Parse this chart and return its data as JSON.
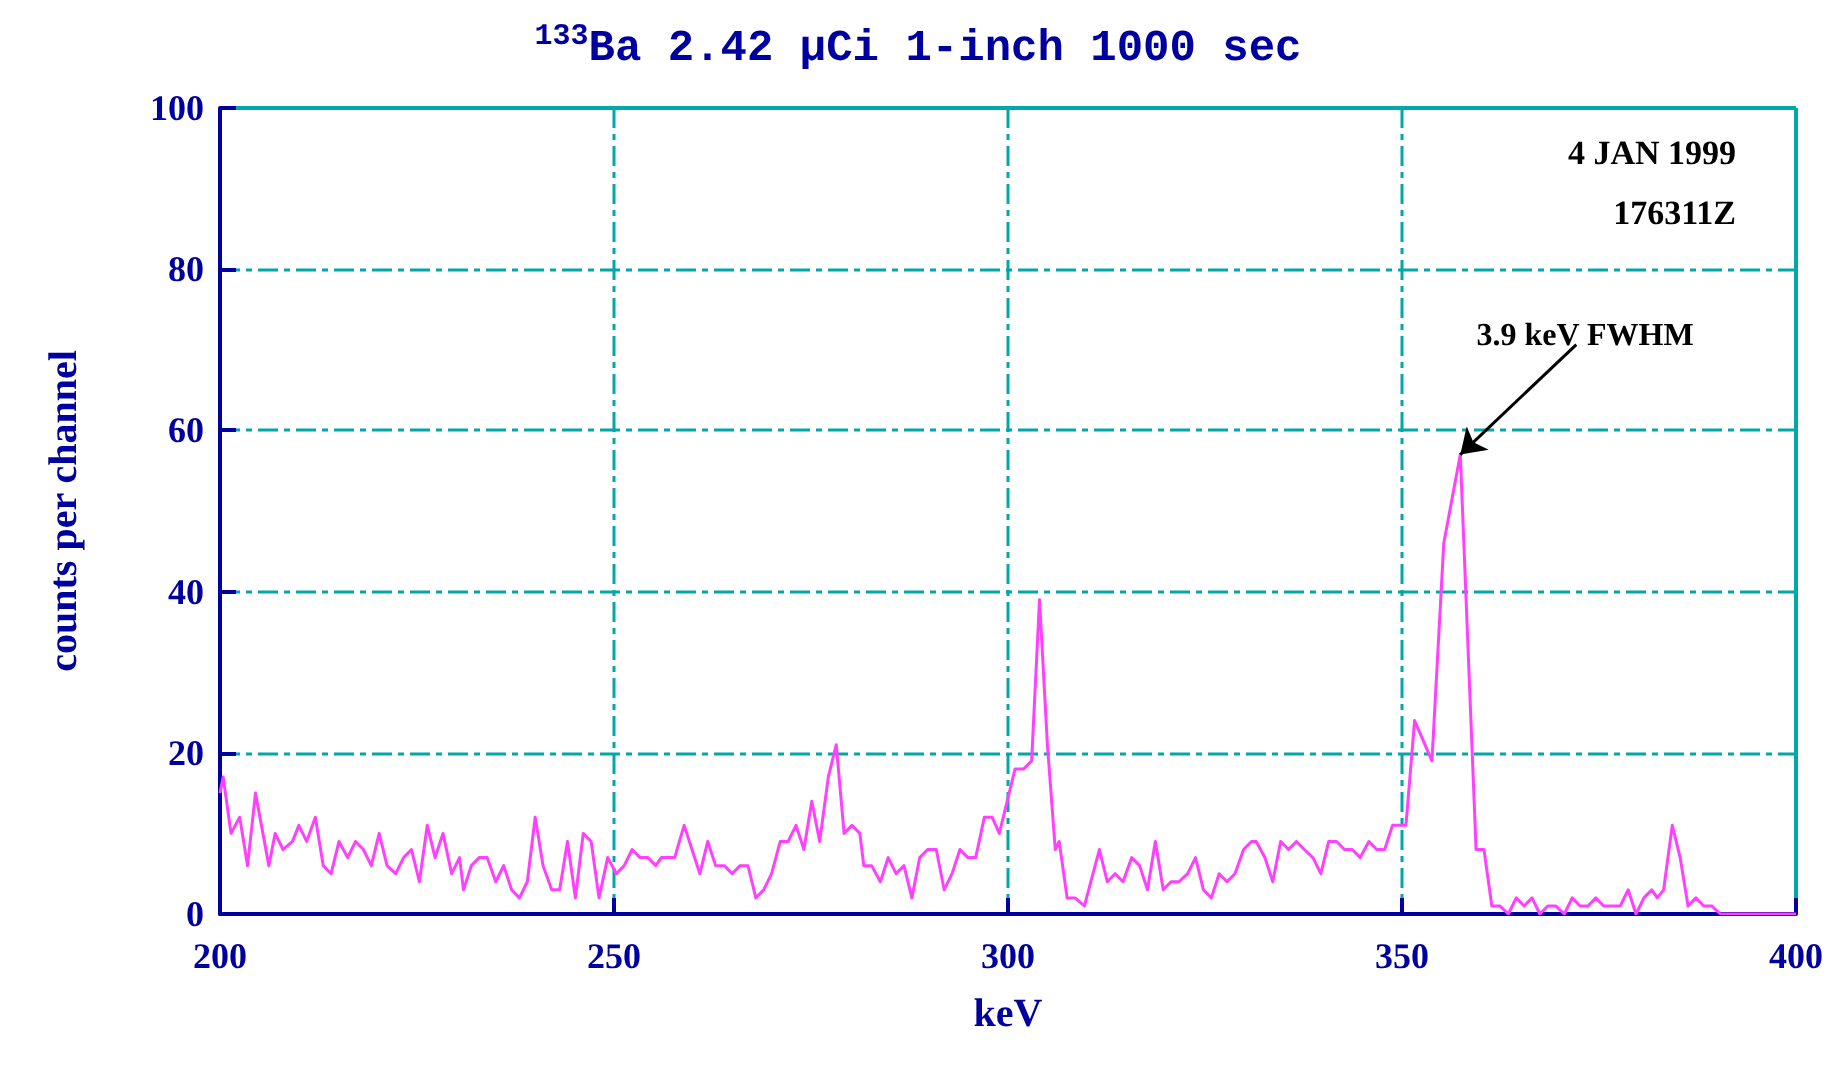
{
  "chart_data": {
    "type": "line",
    "title": "$^{133}$Ba 2.42 µCi 1-inch 1000 sec",
    "xlabel": "keV",
    "ylabel": "counts per channel",
    "xlim": [
      200,
      400
    ],
    "ylim": [
      0,
      100
    ],
    "xticks": [
      200,
      250,
      300,
      350,
      400
    ],
    "yticks": [
      0,
      20,
      40,
      60,
      80,
      100
    ],
    "grid": true,
    "marker": "none",
    "line_style": "solid",
    "annotations": [
      "4 JAN 1999",
      "176311Z",
      {
        "text": "3.9 keV FWHM",
        "x": 357.4,
        "y": 57
      }
    ],
    "series": [
      {
        "color": "#ff40ff",
        "x": [
          200,
          200.4,
          201.4,
          202.5,
          203.5,
          204.5,
          206.2,
          207,
          208,
          209.2,
          210,
          211,
          212.1,
          213.1,
          214.1,
          215.1,
          216.2,
          217.2,
          218.2,
          219.2,
          220.2,
          221.2,
          222.3,
          223.3,
          224.3,
          225.3,
          226.3,
          227.3,
          228.3,
          229.4,
          230.4,
          230.9,
          231.9,
          232.9,
          233.9,
          235,
          236,
          237,
          238,
          239,
          240,
          241,
          242.1,
          243.1,
          244.1,
          245.1,
          246.1,
          247.1,
          248.1,
          249.2,
          250.3,
          251.3,
          252.3,
          253.3,
          254.3,
          255.3,
          256,
          257.7,
          258.9,
          259.9,
          260.9,
          261.9,
          262.9,
          264,
          265,
          266,
          267,
          268,
          269,
          270,
          271.1,
          272.1,
          273.1,
          274.1,
          275.1,
          276.1,
          277.2,
          278.2,
          279.2,
          280.2,
          281.2,
          281.7,
          282.7,
          283.8,
          284.8,
          285.8,
          286.8,
          287.8,
          288.8,
          289.8,
          290.9,
          291.9,
          292.9,
          293.9,
          294.9,
          295.9,
          297,
          298,
          298.9,
          299.9,
          300.9,
          302,
          303,
          304,
          305,
          306,
          306.5,
          307.5,
          308.5,
          309.7,
          311.6,
          312.6,
          313.6,
          314.6,
          315.7,
          316.7,
          317.7,
          318.7,
          319.7,
          320.7,
          321.7,
          322.8,
          323.8,
          324.8,
          325.8,
          326.8,
          327.8,
          328.8,
          329.9,
          330.9,
          331.5,
          332.6,
          333.6,
          334.6,
          335.6,
          336.6,
          337.6,
          338.7,
          339.7,
          340.7,
          341.7,
          342.7,
          343.7,
          344.7,
          345.8,
          346.8,
          347.8,
          348.8,
          350.5,
          351.6,
          353.8,
          355.3,
          357.4,
          359.4,
          360.4,
          361.4,
          362.4,
          363.5,
          364.5,
          365.5,
          366.5,
          367.5,
          368.5,
          369.5,
          370.6,
          371.6,
          372.6,
          373.6,
          374.6,
          375.6,
          376.6,
          377.7,
          378.7,
          379.7,
          380.7,
          381.7,
          382.4,
          383.2,
          384.3,
          385.3,
          386.3,
          387.3,
          388.3,
          389.3,
          390.4,
          400
        ],
        "values": [
          15,
          17,
          10,
          12,
          6,
          15,
          6,
          10,
          8,
          9,
          11,
          9,
          12,
          6,
          5,
          9,
          7,
          9,
          8,
          6,
          10,
          6,
          5,
          7,
          8,
          4,
          11,
          7,
          10,
          5,
          7,
          3,
          6,
          7,
          7,
          4,
          6,
          3,
          2,
          4,
          12,
          6,
          3,
          3,
          9,
          2,
          10,
          9,
          2,
          7,
          5,
          6,
          8,
          7,
          7,
          6,
          7,
          7,
          11,
          8,
          5,
          9,
          6,
          6,
          5,
          6,
          6,
          2,
          3,
          5,
          9,
          9,
          11,
          8,
          14,
          9,
          17,
          21,
          10,
          11,
          10,
          6,
          6,
          4,
          7,
          5,
          6,
          2,
          7,
          8,
          8,
          3,
          5,
          8,
          7,
          7,
          12,
          12,
          10,
          14,
          18,
          18,
          19,
          39,
          21,
          8,
          9,
          2,
          2,
          1,
          8,
          4,
          5,
          4,
          7,
          6,
          3,
          9,
          3,
          4,
          4,
          5,
          7,
          3,
          2,
          5,
          4,
          5,
          8,
          9,
          9,
          7,
          4,
          9,
          8,
          9,
          8,
          7,
          5,
          9,
          9,
          8,
          8,
          7,
          9,
          8,
          8,
          11,
          11,
          24,
          19,
          46,
          57,
          8,
          8,
          1,
          1,
          0,
          2,
          1,
          2,
          0,
          1,
          1,
          0,
          2,
          1,
          1,
          2,
          1,
          1,
          1,
          3,
          0,
          2,
          3,
          2,
          3,
          11,
          7,
          1,
          2,
          1,
          1,
          0,
          0
        ]
      }
    ]
  }
}
